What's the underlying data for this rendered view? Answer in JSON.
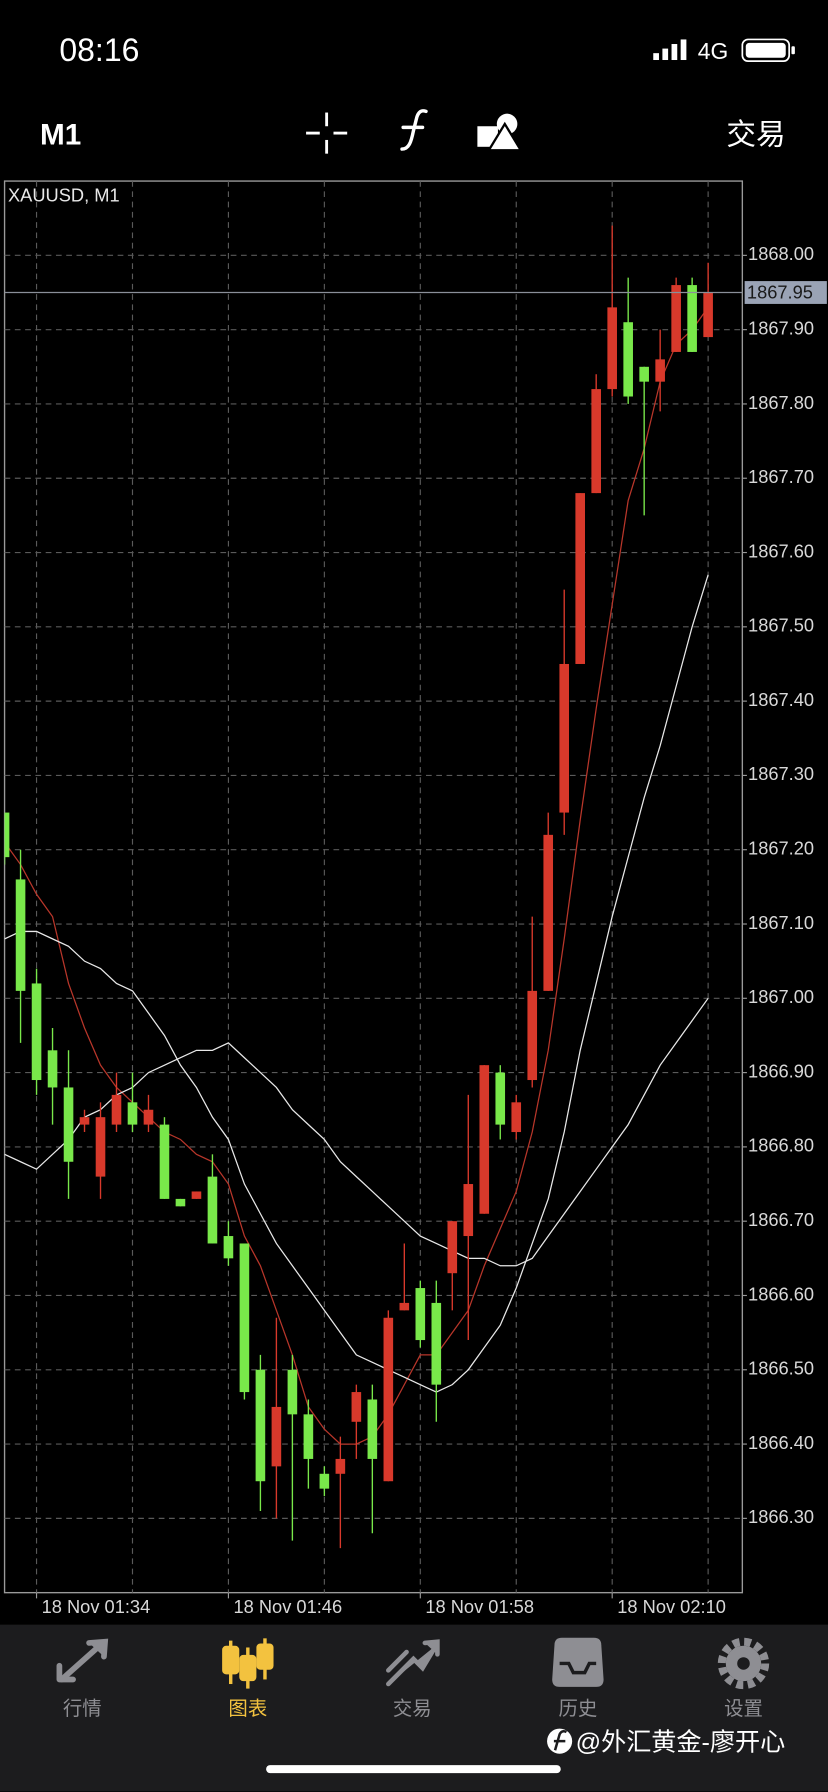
{
  "status_bar": {
    "time": "08:16",
    "network": "4G"
  },
  "toolbar": {
    "timeframe": "M1",
    "trade": "交易"
  },
  "chart_data": {
    "type": "candlestick",
    "title": "XAUUSD, M1",
    "x": [
      0,
      1,
      2,
      3,
      4,
      5,
      6,
      7,
      8,
      9,
      10,
      11,
      12,
      13,
      14,
      15,
      16,
      17,
      18,
      19,
      20,
      21,
      22,
      23,
      24,
      25,
      26,
      27,
      28,
      29,
      30,
      31,
      32,
      33,
      34,
      35,
      36,
      37,
      38,
      39,
      40,
      41,
      42,
      43,
      44
    ],
    "open": [
      1867.25,
      1867.16,
      1867.02,
      1866.93,
      1866.88,
      1866.83,
      1866.76,
      1866.83,
      1866.86,
      1866.83,
      1866.83,
      1866.73,
      1866.73,
      1866.76,
      1866.68,
      1866.67,
      1866.5,
      1866.37,
      1866.5,
      1866.44,
      1866.36,
      1866.36,
      1866.43,
      1866.46,
      1866.35,
      1866.58,
      1866.61,
      1866.59,
      1866.63,
      1866.68,
      1866.71,
      1866.9,
      1866.82,
      1866.89,
      1867.01,
      1867.25,
      1867.45,
      1867.68,
      1867.82,
      1867.91,
      1867.85,
      1867.83,
      1867.87,
      1867.96,
      1867.89
    ],
    "high": [
      1867.25,
      1867.2,
      1867.04,
      1866.96,
      1866.93,
      1866.85,
      1866.86,
      1866.9,
      1866.9,
      1866.87,
      1866.84,
      1866.73,
      1866.74,
      1866.79,
      1866.7,
      1866.67,
      1866.52,
      1866.57,
      1866.52,
      1866.46,
      1866.37,
      1866.41,
      1866.48,
      1866.48,
      1866.58,
      1866.67,
      1866.62,
      1866.62,
      1866.7,
      1866.87,
      1866.91,
      1866.91,
      1866.87,
      1867.11,
      1867.25,
      1867.55,
      1867.68,
      1867.84,
      1868.04,
      1867.97,
      1867.85,
      1867.9,
      1867.97,
      1867.97,
      1867.99
    ],
    "low": [
      1867.18,
      1866.94,
      1866.87,
      1866.83,
      1866.73,
      1866.82,
      1866.73,
      1866.82,
      1866.82,
      1866.82,
      1866.73,
      1866.72,
      1866.73,
      1866.67,
      1866.64,
      1866.46,
      1866.31,
      1866.3,
      1866.27,
      1866.34,
      1866.33,
      1866.26,
      1866.38,
      1866.28,
      1866.35,
      1866.58,
      1866.53,
      1866.43,
      1866.58,
      1866.54,
      1866.71,
      1866.81,
      1866.81,
      1866.88,
      1867.01,
      1867.22,
      1867.45,
      1867.68,
      1867.81,
      1867.8,
      1867.65,
      1867.79,
      1867.87,
      1867.87,
      1867.89
    ],
    "close": [
      1867.19,
      1867.01,
      1866.89,
      1866.88,
      1866.78,
      1866.84,
      1866.84,
      1866.87,
      1866.83,
      1866.85,
      1866.73,
      1866.72,
      1866.74,
      1866.67,
      1866.65,
      1866.47,
      1866.35,
      1866.45,
      1866.44,
      1866.38,
      1866.34,
      1866.38,
      1866.47,
      1866.38,
      1866.57,
      1866.59,
      1866.54,
      1866.48,
      1866.7,
      1866.75,
      1866.91,
      1866.83,
      1866.86,
      1867.01,
      1867.22,
      1867.45,
      1867.68,
      1867.82,
      1867.93,
      1867.81,
      1867.83,
      1867.86,
      1867.96,
      1867.87,
      1867.95
    ],
    "up_color": "#d8392b",
    "down_color": "#79e84a",
    "lines": [
      {
        "color": "#b8362a",
        "values": [
          1867.21,
          1867.18,
          1867.14,
          1867.11,
          1867.02,
          1866.96,
          1866.91,
          1866.88,
          1866.86,
          1866.84,
          1866.82,
          1866.81,
          1866.79,
          1866.78,
          1866.75,
          1866.68,
          1866.64,
          1866.58,
          1866.52,
          1866.45,
          1866.42,
          1866.4,
          1866.4,
          1866.41,
          1866.44,
          1866.48,
          1866.52,
          1866.52,
          1866.55,
          1866.58,
          1866.64,
          1866.69,
          1866.74,
          1866.82,
          1866.93,
          1867.08,
          1867.24,
          1867.39,
          1867.53,
          1867.67,
          1867.74,
          1867.83,
          1867.88,
          1867.9,
          1867.93
        ]
      },
      {
        "color": "#e8e8e8",
        "values": [
          1867.08,
          1867.09,
          1867.09,
          1867.08,
          1867.07,
          1867.05,
          1867.04,
          1867.02,
          1867.01,
          1866.98,
          1866.95,
          1866.91,
          1866.88,
          1866.84,
          1866.81,
          1866.75,
          1866.71,
          1866.67,
          1866.64,
          1866.61,
          1866.58,
          1866.55,
          1866.52,
          1866.51,
          1866.5,
          1866.49,
          1866.48,
          1866.47,
          1866.48,
          1866.5,
          1866.53,
          1866.56,
          1866.61,
          1866.67,
          1866.73,
          1866.82,
          1866.93,
          1867.02,
          1867.11,
          1867.19,
          1867.27,
          1867.34,
          1867.42,
          1867.5,
          1867.57
        ]
      },
      {
        "color": "#e8e8e8",
        "values": [
          1866.79,
          1866.78,
          1866.77,
          1866.79,
          1866.81,
          1866.84,
          1866.85,
          1866.87,
          1866.88,
          1866.9,
          1866.91,
          1866.92,
          1866.93,
          1866.93,
          1866.94,
          1866.92,
          1866.9,
          1866.88,
          1866.85,
          1866.83,
          1866.81,
          1866.78,
          1866.76,
          1866.74,
          1866.72,
          1866.7,
          1866.68,
          1866.67,
          1866.66,
          1866.65,
          1866.65,
          1866.64,
          1866.64,
          1866.65,
          1866.68,
          1866.71,
          1866.74,
          1866.77,
          1866.8,
          1866.83,
          1866.87,
          1866.91,
          1866.94,
          1866.97,
          1867.0
        ]
      }
    ],
    "xlim": [
      0,
      46.14
    ],
    "xticks": [
      {
        "value": 2,
        "label": "18 Nov 01:34"
      },
      {
        "value": 14,
        "label": "18 Nov 01:46"
      },
      {
        "value": 26,
        "label": "18 Nov 01:58"
      },
      {
        "value": 38,
        "label": "18 Nov 02:10"
      }
    ],
    "minor_xticks": [
      8,
      20,
      32,
      44
    ],
    "ylim": [
      1866.2,
      1868.1
    ],
    "yticks": [
      {
        "value": 1866.3,
        "label": "1866.30"
      },
      {
        "value": 1866.4,
        "label": "1866.40"
      },
      {
        "value": 1866.5,
        "label": "1866.50"
      },
      {
        "value": 1866.6,
        "label": "1866.60"
      },
      {
        "value": 1866.7,
        "label": "1866.70"
      },
      {
        "value": 1866.8,
        "label": "1866.80"
      },
      {
        "value": 1866.9,
        "label": "1866.90"
      },
      {
        "value": 1867.0,
        "label": "1867.00"
      },
      {
        "value": 1867.1,
        "label": "1867.10"
      },
      {
        "value": 1867.2,
        "label": "1867.20"
      },
      {
        "value": 1867.3,
        "label": "1867.30"
      },
      {
        "value": 1867.4,
        "label": "1867.40"
      },
      {
        "value": 1867.5,
        "label": "1867.50"
      },
      {
        "value": 1867.6,
        "label": "1867.60"
      },
      {
        "value": 1867.7,
        "label": "1867.70"
      },
      {
        "value": 1867.8,
        "label": "1867.80"
      },
      {
        "value": 1867.9,
        "label": "1867.90"
      },
      {
        "value": 1868.0,
        "label": "1868.00"
      }
    ],
    "grid": true,
    "current_price": 1867.95
  },
  "tab_bar": {
    "tabs": [
      "行情",
      "图表",
      "交易",
      "历史",
      "设置"
    ],
    "active": 1
  },
  "watermark": "@外汇黄金-廖开心"
}
